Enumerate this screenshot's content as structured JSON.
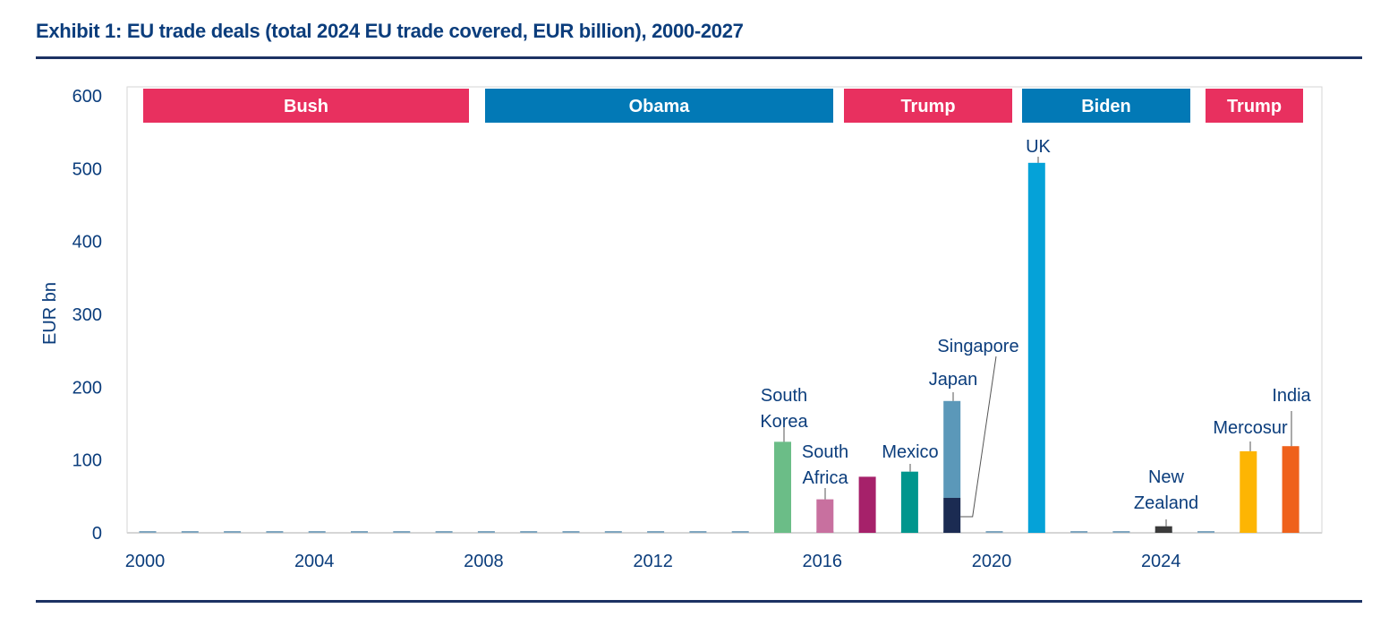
{
  "title": "Exhibit 1: EU trade deals (total 2024 EU trade covered, EUR billion), 2000-2027",
  "chart_data": {
    "type": "bar",
    "title": "Exhibit 1: EU trade deals (total 2024 EU trade covered, EUR billion), 2000-2027",
    "xlabel": "",
    "ylabel": "EUR bn",
    "ylim": [
      0,
      600
    ],
    "yticks": [
      0,
      100,
      200,
      300,
      400,
      500,
      600
    ],
    "xlim": [
      2000,
      2027
    ],
    "xticks": [
      2000,
      2004,
      2008,
      2012,
      2016,
      2020,
      2024
    ],
    "grid": false,
    "eras": [
      {
        "label": "Bush",
        "start": 2000,
        "end": 2008,
        "color": "#e8305f"
      },
      {
        "label": "Obama",
        "start": 2008,
        "end": 2016,
        "color": "#0279b6"
      },
      {
        "label": "Trump",
        "start": 2016,
        "end": 2020,
        "color": "#e8305f"
      },
      {
        "label": "Biden",
        "start": 2020,
        "end": 2024,
        "color": "#0279b6"
      },
      {
        "label": "Trump",
        "start": 2024,
        "end": 2027,
        "color": "#e8305f"
      }
    ],
    "baseline_color": "#7fa6bf",
    "deals": [
      {
        "year": 2015,
        "label": "South Korea",
        "value": 125,
        "color": "#6bbd87"
      },
      {
        "year": 2016,
        "label": "South Africa",
        "value": 46,
        "color": "#c8709f"
      },
      {
        "year": 2017,
        "label": "",
        "value": 77,
        "color": "#a6216a"
      },
      {
        "year": 2018,
        "label": "Mexico",
        "value": 84,
        "color": "#00968d"
      },
      {
        "year": 2019,
        "label": "Japan",
        "value": 133,
        "stack_base": 48,
        "color": "#5b98b9"
      },
      {
        "year": 2019,
        "label": "Singapore",
        "value": 48,
        "color": "#1b2b52"
      },
      {
        "year": 2021,
        "label": "UK",
        "value": 508,
        "color": "#05a2d8"
      },
      {
        "year": 2024,
        "label": "New Zealand",
        "value": 9,
        "color": "#3a3a3a"
      },
      {
        "year": 2026,
        "label": "Mercosur",
        "value": 112,
        "color": "#fdb503"
      },
      {
        "year": 2027,
        "label": "India",
        "value": 119,
        "color": "#ef611b"
      }
    ]
  }
}
